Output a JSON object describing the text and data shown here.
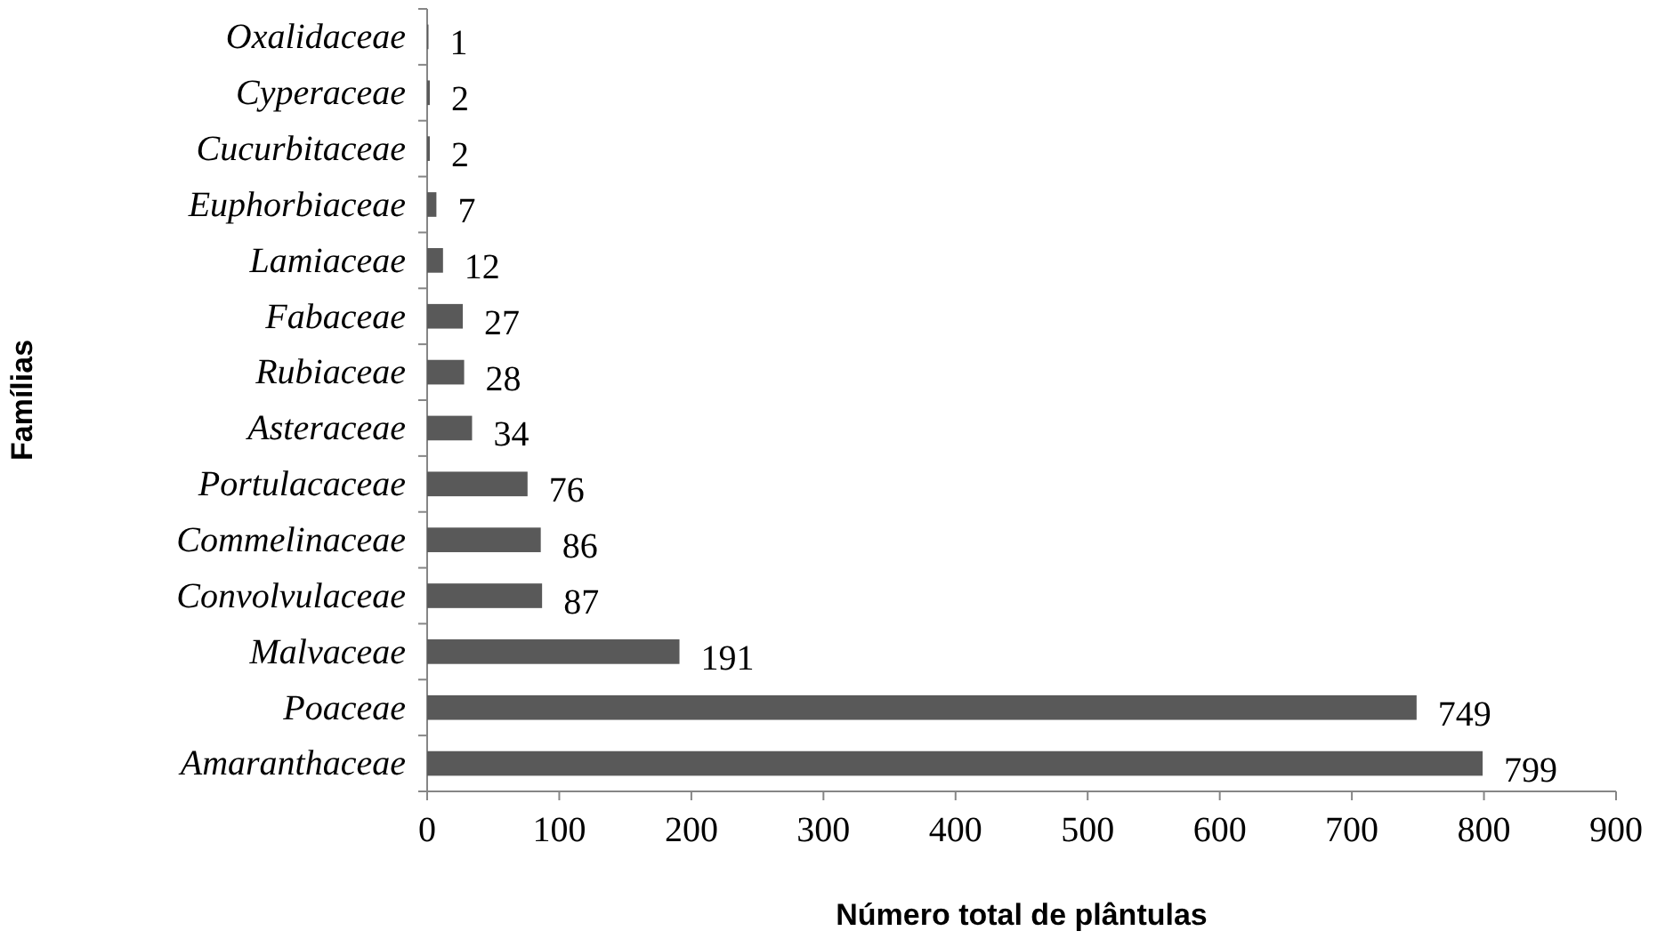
{
  "chart_data": {
    "type": "bar",
    "orientation": "horizontal",
    "xlabel": "Número total de plântulas",
    "ylabel": "Famílias",
    "categories": [
      "Oxalidaceae",
      "Cyperaceae",
      "Cucurbitaceae",
      "Euphorbiaceae",
      "Lamiaceae",
      "Fabaceae",
      "Rubiaceae",
      "Asteraceae",
      "Portulacaceae",
      "Commelinaceae",
      "Convolvulaceae",
      "Malvaceae",
      "Poaceae",
      "Amaranthaceae"
    ],
    "values": [
      1,
      2,
      2,
      7,
      12,
      27,
      28,
      34,
      76,
      86,
      87,
      191,
      749,
      799
    ],
    "color": "#595959",
    "xlim": [
      0,
      900
    ],
    "xticks": [
      0,
      100,
      200,
      300,
      400,
      500,
      600,
      700,
      800,
      900
    ],
    "data_labels": true
  }
}
